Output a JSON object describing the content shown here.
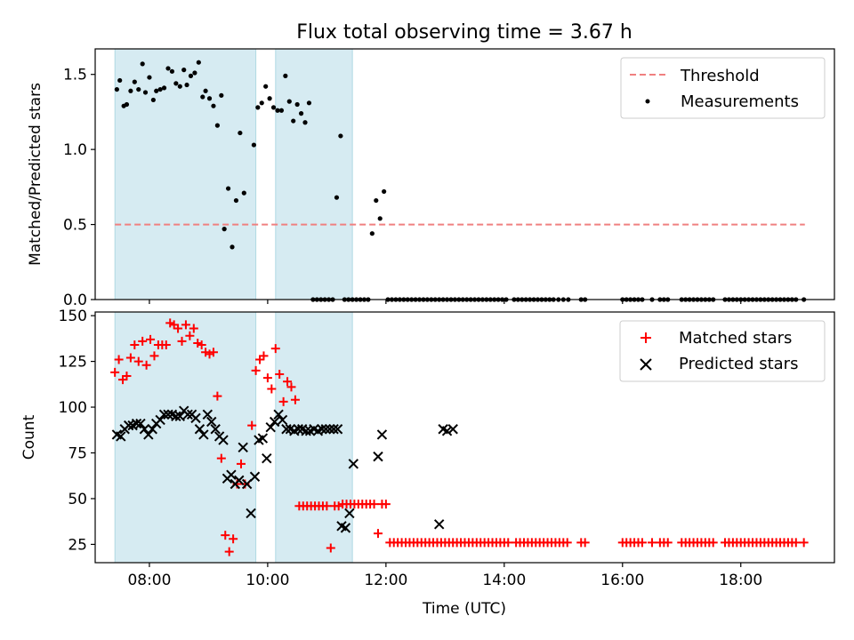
{
  "title": "Flux total observing time = 3.67 h",
  "chart_data": [
    {
      "type": "scatter",
      "panel": "top",
      "ylabel": "Matched/Predicted stars",
      "xlim": [
        "07:05",
        "19:35"
      ],
      "ylim": [
        0,
        1.67
      ],
      "yticks": [
        "0.0",
        "0.5",
        "1.0",
        "1.5"
      ],
      "legend": "top-right",
      "shaded_intervals": [
        [
          "07:25",
          "09:48"
        ],
        [
          "10:08",
          "11:26"
        ]
      ],
      "threshold": {
        "name": "Threshold",
        "value": 0.5,
        "x_range": [
          "07:25",
          "19:05"
        ],
        "color": "#f08080"
      },
      "series": [
        {
          "name": "Measurements",
          "color": "#000000",
          "x": [
            "07:27",
            "07:30",
            "07:34",
            "07:37",
            "07:41",
            "07:45",
            "07:49",
            "07:53",
            "07:56",
            "08:00",
            "08:04",
            "08:07",
            "08:11",
            "08:15",
            "08:19",
            "08:23",
            "08:27",
            "08:31",
            "08:35",
            "08:38",
            "08:42",
            "08:46",
            "08:50",
            "08:54",
            "08:57",
            "09:01",
            "09:05",
            "09:09",
            "09:13",
            "09:16",
            "09:20",
            "09:24",
            "09:28",
            "09:32",
            "09:36",
            "09:46",
            "09:50",
            "09:54",
            "09:58",
            "10:02",
            "10:06",
            "10:10",
            "10:14",
            "10:18",
            "10:22",
            "10:26",
            "10:30",
            "10:34",
            "10:38",
            "10:42",
            "10:46",
            "10:50",
            "10:54",
            "10:58",
            "11:02",
            "11:06",
            "11:10",
            "11:14",
            "11:18",
            "11:22",
            "11:26",
            "11:30",
            "11:34",
            "11:38",
            "11:42",
            "11:46",
            "11:50",
            "11:54",
            "11:58",
            "12:02",
            "12:06",
            "12:10",
            "12:14",
            "12:18",
            "12:22",
            "12:26",
            "12:30",
            "12:34",
            "12:38",
            "12:42",
            "12:46",
            "12:50",
            "12:54",
            "12:58",
            "13:02",
            "13:06",
            "13:10",
            "13:14",
            "13:18",
            "13:22",
            "13:26",
            "13:30",
            "13:34",
            "13:38",
            "13:42",
            "13:46",
            "13:50",
            "13:54",
            "13:58",
            "14:02",
            "14:10",
            "14:14",
            "14:18",
            "14:22",
            "14:26",
            "14:30",
            "14:34",
            "14:38",
            "14:42",
            "14:46",
            "14:50",
            "14:55",
            "15:00",
            "15:05",
            "15:18",
            "15:22",
            "16:00",
            "16:04",
            "16:08",
            "16:12",
            "16:16",
            "16:20",
            "16:30",
            "16:38",
            "16:42",
            "16:46",
            "17:00",
            "17:04",
            "17:08",
            "17:12",
            "17:16",
            "17:20",
            "17:24",
            "17:28",
            "17:32",
            "17:44",
            "17:48",
            "17:52",
            "17:56",
            "18:00",
            "18:04",
            "18:08",
            "18:12",
            "18:16",
            "18:20",
            "18:24",
            "18:28",
            "18:32",
            "18:36",
            "18:40",
            "18:44",
            "18:48",
            "18:52",
            "18:56",
            "19:04"
          ],
          "y": [
            1.4,
            1.46,
            1.29,
            1.3,
            1.39,
            1.45,
            1.4,
            1.57,
            1.38,
            1.48,
            1.33,
            1.39,
            1.4,
            1.41,
            1.54,
            1.52,
            1.44,
            1.42,
            1.53,
            1.43,
            1.49,
            1.51,
            1.58,
            1.35,
            1.39,
            1.34,
            1.29,
            1.16,
            1.36,
            0.47,
            0.74,
            0.35,
            0.66,
            1.11,
            0.71,
            1.03,
            1.28,
            1.31,
            1.42,
            1.34,
            1.28,
            1.26,
            1.26,
            1.49,
            1.32,
            1.19,
            1.3,
            1.24,
            1.18,
            1.31,
            0,
            0,
            0,
            0,
            0,
            0,
            0.68,
            1.09,
            0,
            0,
            0,
            0,
            0,
            0,
            0,
            0.44,
            0.66,
            0.54,
            0.72,
            0,
            0,
            0,
            0,
            0,
            0,
            0,
            0,
            0,
            0,
            0,
            0,
            0,
            0,
            0,
            0,
            0,
            0,
            0,
            0,
            0,
            0,
            0,
            0,
            0,
            0,
            0,
            0,
            0,
            0,
            0,
            0,
            0,
            0,
            0,
            0,
            0,
            0,
            0,
            0,
            0,
            0,
            0,
            0,
            0,
            0,
            0,
            0,
            0,
            0,
            0,
            0,
            0,
            0,
            0,
            0,
            0,
            0,
            0,
            0,
            0,
            0,
            0,
            0,
            0,
            0,
            0,
            0,
            0,
            0,
            0,
            0,
            0,
            0,
            0,
            0,
            0,
            0,
            0,
            0,
            0,
            0,
            0,
            0,
            0,
            0
          ]
        }
      ]
    },
    {
      "type": "scatter",
      "panel": "bottom",
      "xlabel": "Time (UTC)",
      "ylabel": "Count",
      "xlim": [
        "07:05",
        "19:35"
      ],
      "ylim": [
        15,
        152
      ],
      "yticks": [
        "25",
        "50",
        "75",
        "100",
        "125",
        "150"
      ],
      "xticks": [
        "08:00",
        "10:00",
        "12:00",
        "14:00",
        "16:00",
        "18:00"
      ],
      "legend": "top-right",
      "shaded_intervals": [
        [
          "07:25",
          "09:48"
        ],
        [
          "10:08",
          "11:26"
        ]
      ],
      "series": [
        {
          "name": "Matched stars",
          "color": "#ff0000",
          "marker": "plus",
          "x": [
            "07:25",
            "07:29",
            "07:33",
            "07:37",
            "07:41",
            "07:45",
            "07:49",
            "07:53",
            "07:57",
            "08:01",
            "08:05",
            "08:09",
            "08:13",
            "08:17",
            "08:21",
            "08:25",
            "08:29",
            "08:33",
            "08:37",
            "08:41",
            "08:45",
            "08:49",
            "08:53",
            "08:57",
            "09:01",
            "09:05",
            "09:09",
            "09:13",
            "09:17",
            "09:21",
            "09:25",
            "09:29",
            "09:33",
            "09:37",
            "09:44",
            "09:48",
            "09:52",
            "09:56",
            "10:00",
            "10:04",
            "10:08",
            "10:12",
            "10:16",
            "10:20",
            "10:24",
            "10:28",
            "10:32",
            "10:36",
            "10:40",
            "10:44",
            "10:48",
            "10:52",
            "10:56",
            "11:00",
            "11:04",
            "11:08",
            "11:12",
            "11:16",
            "11:20",
            "11:24",
            "11:28",
            "11:32",
            "11:36",
            "11:40",
            "11:44",
            "11:48",
            "11:52",
            "11:56",
            "12:00",
            "12:04",
            "12:08",
            "12:12",
            "12:16",
            "12:20",
            "12:24",
            "12:28",
            "12:32",
            "12:36",
            "12:40",
            "12:44",
            "12:48",
            "12:52",
            "12:56",
            "13:00",
            "13:04",
            "13:08",
            "13:12",
            "13:16",
            "13:20",
            "13:24",
            "13:28",
            "13:32",
            "13:36",
            "13:40",
            "13:44",
            "13:48",
            "13:52",
            "13:56",
            "14:00",
            "14:04",
            "14:12",
            "14:16",
            "14:20",
            "14:24",
            "14:28",
            "14:32",
            "14:36",
            "14:40",
            "14:44",
            "14:48",
            "14:52",
            "14:56",
            "15:00",
            "15:04",
            "15:18",
            "15:22",
            "16:00",
            "16:04",
            "16:08",
            "16:12",
            "16:16",
            "16:20",
            "16:30",
            "16:38",
            "16:42",
            "16:46",
            "17:00",
            "17:04",
            "17:08",
            "17:12",
            "17:16",
            "17:20",
            "17:24",
            "17:28",
            "17:32",
            "17:44",
            "17:48",
            "17:52",
            "17:56",
            "18:00",
            "18:04",
            "18:08",
            "18:12",
            "18:16",
            "18:20",
            "18:24",
            "18:28",
            "18:32",
            "18:36",
            "18:40",
            "18:44",
            "18:48",
            "18:52",
            "18:56",
            "19:04"
          ],
          "y": [
            119,
            126,
            115,
            117,
            127,
            134,
            125,
            136,
            123,
            137,
            128,
            134,
            134,
            134,
            146,
            145,
            143,
            136,
            145,
            139,
            143,
            135,
            134,
            130,
            129,
            130,
            106,
            72,
            30,
            21,
            28,
            58,
            69,
            58,
            90,
            120,
            126,
            128,
            116,
            110,
            132,
            118,
            103,
            114,
            111,
            104,
            46,
            46,
            46,
            46,
            46,
            46,
            46,
            46,
            23,
            46,
            46,
            47,
            47,
            47,
            47,
            47,
            47,
            47,
            47,
            47,
            31,
            47,
            47,
            26,
            26,
            26,
            26,
            26,
            26,
            26,
            26,
            26,
            26,
            26,
            26,
            26,
            26,
            26,
            26,
            26,
            26,
            26,
            26,
            26,
            26,
            26,
            26,
            26,
            26,
            26,
            26,
            26,
            26,
            26,
            26,
            26,
            26,
            26,
            26,
            26,
            26,
            26,
            26,
            26,
            26,
            26,
            26,
            26,
            26,
            26,
            26,
            26,
            26,
            26,
            26,
            26,
            26,
            26,
            26,
            26,
            26,
            26,
            26,
            26,
            26,
            26,
            26,
            26,
            26,
            26,
            26,
            26,
            26,
            26,
            26,
            26,
            26,
            26,
            26,
            26,
            26,
            26,
            26,
            26,
            26,
            26,
            26,
            26,
            26
          ]
        },
        {
          "name": "Predicted stars",
          "color": "#000000",
          "marker": "x",
          "x": [
            "07:27",
            "07:31",
            "07:35",
            "07:39",
            "07:43",
            "07:47",
            "07:51",
            "07:55",
            "07:59",
            "08:03",
            "08:07",
            "08:11",
            "08:15",
            "08:19",
            "08:23",
            "08:27",
            "08:31",
            "08:35",
            "08:39",
            "08:43",
            "08:47",
            "08:51",
            "08:55",
            "08:59",
            "09:03",
            "09:07",
            "09:11",
            "09:15",
            "09:19",
            "09:23",
            "09:27",
            "09:31",
            "09:35",
            "09:39",
            "09:43",
            "09:47",
            "09:51",
            "09:55",
            "09:59",
            "10:03",
            "10:07",
            "10:11",
            "10:15",
            "10:19",
            "10:23",
            "10:27",
            "10:31",
            "10:35",
            "10:39",
            "10:43",
            "10:47",
            "10:51",
            "10:55",
            "10:59",
            "11:03",
            "11:07",
            "11:11",
            "11:15",
            "11:19",
            "11:23",
            "11:27",
            "11:52",
            "11:56",
            "12:54",
            "12:58",
            "13:02",
            "13:08"
          ],
          "y": [
            85,
            84,
            88,
            90,
            90,
            91,
            91,
            88,
            85,
            88,
            91,
            93,
            96,
            96,
            96,
            95,
            95,
            98,
            96,
            96,
            94,
            88,
            85,
            96,
            92,
            88,
            84,
            82,
            61,
            63,
            58,
            60,
            78,
            58,
            42,
            62,
            82,
            83,
            72,
            89,
            92,
            96,
            93,
            88,
            88,
            87,
            88,
            88,
            87,
            87,
            88,
            87,
            88,
            88,
            88,
            88,
            88,
            35,
            34,
            42,
            69,
            73,
            85,
            36,
            88,
            87,
            88
          ]
        }
      ]
    }
  ]
}
